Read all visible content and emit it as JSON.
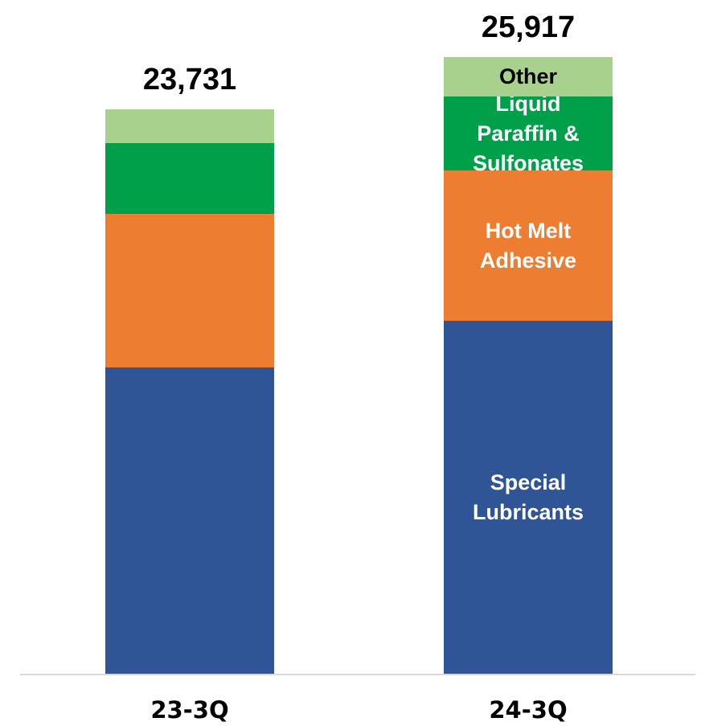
{
  "chart_data": {
    "type": "stacked_bar",
    "categories": [
      "23-3Q",
      "24-3Q"
    ],
    "series": [
      {
        "name": "Special Lubricants",
        "color": "#2f5597",
        "values": [
          12879,
          14839
        ]
      },
      {
        "name": "Hot Melt Adhesive",
        "color": "#ed7d31",
        "values": [
          6456,
          6321
        ]
      },
      {
        "name": "Liquid Paraffin & Sulfonates",
        "color": "#00a04a",
        "values": [
          2975,
          3110
        ]
      },
      {
        "name": "Other",
        "color": "#a9d18e",
        "values": [
          1421,
          1647
        ]
      }
    ],
    "totals": {
      "values": [
        23731,
        25917
      ],
      "value_labels": [
        "23,731",
        "25,917"
      ]
    },
    "ylim": [
      0,
      26000
    ]
  }
}
